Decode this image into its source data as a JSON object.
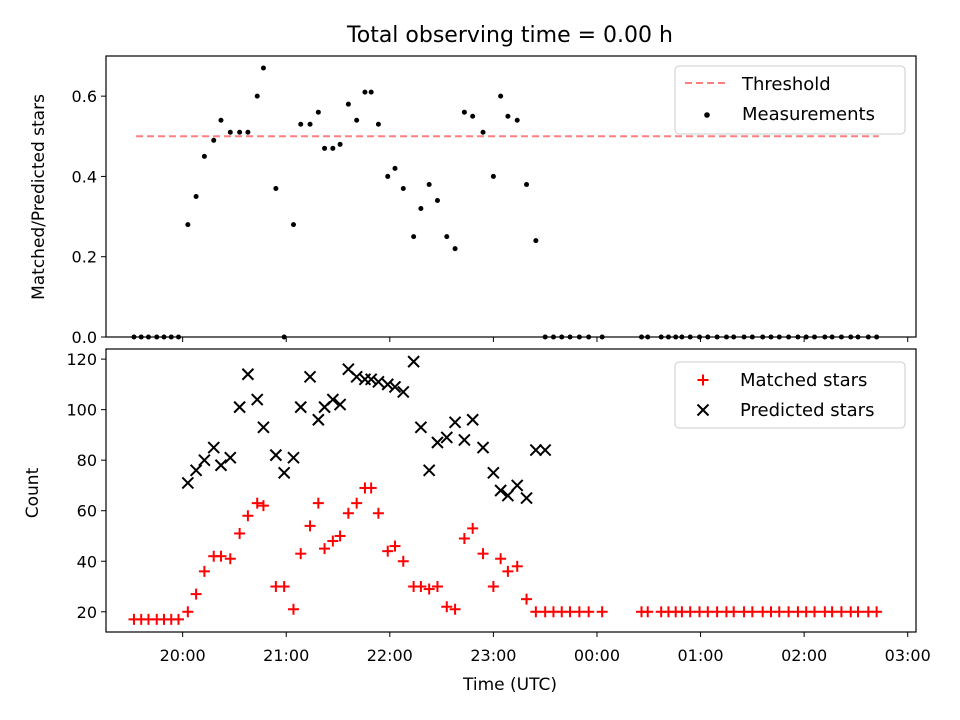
{
  "chart_data": [
    {
      "type": "scatter",
      "title": "Total observing time = 0.00 h",
      "ylabel": "Matched/Predicted stars",
      "xlim": [
        19.26,
        27.08
      ],
      "ylim": [
        0,
        0.7
      ],
      "yticks": [
        0.0,
        0.2,
        0.4,
        0.6
      ],
      "ytick_labels": [
        "0.0",
        "0.2",
        "0.4",
        "0.6"
      ],
      "legend_position": "top-right",
      "threshold": {
        "name": "Threshold",
        "value": 0.5,
        "x_range": [
          19.55,
          26.72
        ],
        "color": "#ff7f7f",
        "style": "dashed"
      },
      "series": [
        {
          "name": "Measurements",
          "color": "#000000",
          "marker": "dot",
          "x": [
            19.53,
            19.6,
            19.67,
            19.75,
            19.82,
            19.89,
            19.96,
            20.05,
            20.13,
            20.21,
            20.3,
            20.37,
            20.46,
            20.55,
            20.63,
            20.72,
            20.78,
            20.9,
            20.98,
            21.07,
            21.14,
            21.23,
            21.31,
            21.37,
            21.45,
            21.52,
            21.6,
            21.68,
            21.76,
            21.82,
            21.89,
            21.98,
            22.05,
            22.13,
            22.23,
            22.3,
            22.38,
            22.46,
            22.55,
            22.63,
            22.72,
            22.8,
            22.9,
            23.0,
            23.07,
            23.14,
            23.23,
            23.32,
            23.41,
            23.5,
            23.58,
            23.66,
            23.74,
            23.83,
            23.92,
            24.05,
            24.43,
            24.49,
            24.62,
            24.69,
            24.76,
            24.82,
            24.9,
            24.99,
            25.07,
            25.16,
            25.25,
            25.32,
            25.42,
            25.5,
            25.6,
            25.68,
            25.76,
            25.85,
            25.94,
            26.02,
            26.1,
            26.2,
            26.27,
            26.36,
            26.45,
            26.52,
            26.62,
            26.7
          ],
          "y": [
            0,
            0,
            0,
            0,
            0,
            0,
            0,
            0.28,
            0.35,
            0.45,
            0.49,
            0.54,
            0.51,
            0.51,
            0.51,
            0.6,
            0.67,
            0.37,
            0,
            0.28,
            0.53,
            0.53,
            0.56,
            0.47,
            0.47,
            0.48,
            0.58,
            0.54,
            0.61,
            0.61,
            0.53,
            0.4,
            0.42,
            0.37,
            0.25,
            0.32,
            0.38,
            0.34,
            0.25,
            0.22,
            0.56,
            0.55,
            0.51,
            0.4,
            0.6,
            0.55,
            0.54,
            0.38,
            0.24,
            0,
            0,
            0,
            0,
            0,
            0,
            0,
            0,
            0,
            0,
            0,
            0,
            0,
            0,
            0,
            0,
            0,
            0,
            0,
            0,
            0,
            0,
            0,
            0,
            0,
            0,
            0,
            0,
            0,
            0,
            0,
            0,
            0,
            0,
            0
          ]
        }
      ]
    },
    {
      "type": "scatter",
      "xlabel": "Time (UTC)",
      "ylabel": "Count",
      "xlim": [
        19.26,
        27.08
      ],
      "ylim": [
        12,
        124
      ],
      "xticks": [
        20,
        21,
        22,
        23,
        24,
        25,
        26,
        27
      ],
      "xtick_labels": [
        "20:00",
        "21:00",
        "22:00",
        "23:00",
        "00:00",
        "01:00",
        "02:00",
        "03:00"
      ],
      "yticks": [
        20,
        40,
        60,
        80,
        100,
        120
      ],
      "ytick_labels": [
        "20",
        "40",
        "60",
        "80",
        "100",
        "120"
      ],
      "legend_position": "top-right",
      "series": [
        {
          "name": "Matched stars",
          "color": "#ff0000",
          "marker": "plus",
          "x": [
            19.53,
            19.6,
            19.67,
            19.75,
            19.82,
            19.89,
            19.96,
            20.05,
            20.13,
            20.21,
            20.3,
            20.37,
            20.46,
            20.55,
            20.63,
            20.72,
            20.78,
            20.9,
            20.98,
            21.07,
            21.14,
            21.23,
            21.31,
            21.37,
            21.45,
            21.52,
            21.6,
            21.68,
            21.76,
            21.82,
            21.89,
            21.98,
            22.05,
            22.13,
            22.23,
            22.3,
            22.38,
            22.46,
            22.55,
            22.63,
            22.72,
            22.8,
            22.9,
            23.0,
            23.07,
            23.14,
            23.23,
            23.32,
            23.41,
            23.5,
            23.58,
            23.66,
            23.74,
            23.83,
            23.92,
            24.05,
            24.43,
            24.49,
            24.62,
            24.69,
            24.76,
            24.82,
            24.9,
            24.99,
            25.07,
            25.16,
            25.25,
            25.32,
            25.42,
            25.5,
            25.6,
            25.68,
            25.76,
            25.85,
            25.94,
            26.02,
            26.1,
            26.2,
            26.27,
            26.36,
            26.45,
            26.52,
            26.62,
            26.7
          ],
          "y": [
            17,
            17,
            17,
            17,
            17,
            17,
            17,
            20,
            27,
            36,
            42,
            42,
            41,
            51,
            58,
            63,
            62,
            30,
            30,
            21,
            43,
            54,
            63,
            45,
            48,
            50,
            59,
            63,
            69,
            69,
            59,
            44,
            46,
            40,
            30,
            30,
            29,
            30,
            22,
            21,
            49,
            53,
            43,
            30,
            41,
            36,
            38,
            25,
            20,
            20,
            20,
            20,
            20,
            20,
            20,
            20,
            20,
            20,
            20,
            20,
            20,
            20,
            20,
            20,
            20,
            20,
            20,
            20,
            20,
            20,
            20,
            20,
            20,
            20,
            20,
            20,
            20,
            20,
            20,
            20,
            20,
            20,
            20,
            20
          ]
        },
        {
          "name": "Predicted stars",
          "color": "#000000",
          "marker": "x",
          "x": [
            20.05,
            20.13,
            20.21,
            20.3,
            20.37,
            20.46,
            20.55,
            20.63,
            20.72,
            20.78,
            20.9,
            20.98,
            21.07,
            21.14,
            21.23,
            21.31,
            21.37,
            21.45,
            21.52,
            21.6,
            21.68,
            21.76,
            21.82,
            21.89,
            21.98,
            22.05,
            22.13,
            22.23,
            22.3,
            22.38,
            22.46,
            22.55,
            22.63,
            22.72,
            22.8,
            22.9,
            23.0,
            23.07,
            23.14,
            23.23,
            23.32,
            23.41,
            23.5
          ],
          "y": [
            71,
            76,
            80,
            85,
            78,
            81,
            101,
            114,
            104,
            93,
            82,
            75,
            81,
            101,
            113,
            96,
            101,
            104,
            102,
            116,
            113,
            112,
            112,
            111,
            110,
            109,
            107,
            119,
            93,
            76,
            87,
            89,
            95,
            88,
            96,
            85,
            75,
            68,
            66,
            70,
            65,
            84,
            84
          ]
        }
      ]
    }
  ]
}
